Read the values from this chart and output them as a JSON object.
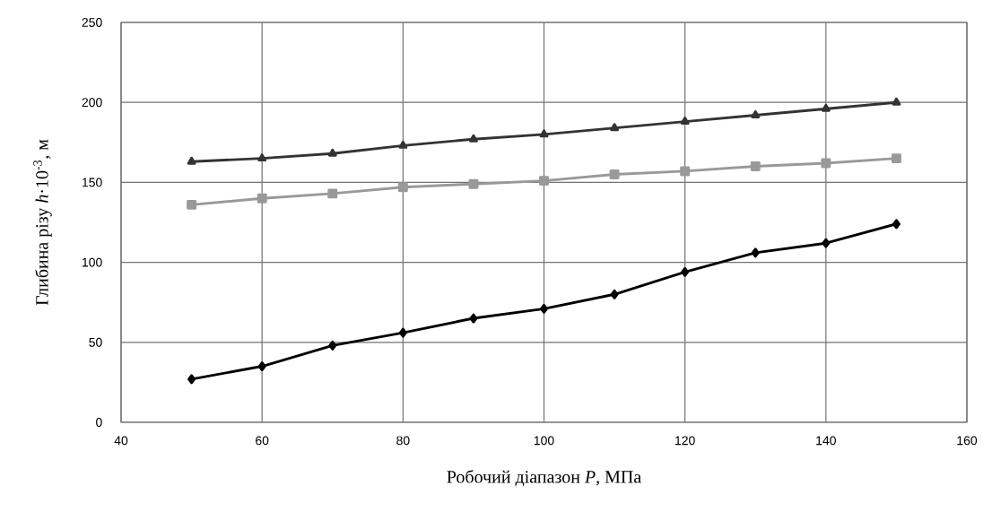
{
  "chart_data": {
    "type": "line",
    "xlabel": "Робочий діапазон *P*, МПа",
    "ylabel": "Глибина різу *h*·10$^{-3}$, м",
    "x": [
      50,
      60,
      70,
      80,
      90,
      100,
      110,
      120,
      130,
      140,
      150
    ],
    "series": [
      {
        "color": "#333333",
        "marker": "triangle",
        "values": [
          163,
          165,
          168,
          173,
          177,
          180,
          184,
          188,
          192,
          196,
          200
        ]
      },
      {
        "color": "#999999",
        "marker": "square",
        "values": [
          136,
          140,
          143,
          147,
          149,
          151,
          155,
          157,
          160,
          162,
          165
        ]
      },
      {
        "color": "#000000",
        "marker": "diamond",
        "values": [
          27,
          35,
          48,
          56,
          65,
          71,
          80,
          94,
          106,
          112,
          124
        ]
      }
    ],
    "xlim": [
      40,
      160
    ],
    "xticks": [
      40,
      60,
      80,
      100,
      120,
      140,
      160
    ],
    "ylim": [
      0,
      250
    ],
    "yticks": [
      0,
      50,
      100,
      150,
      200,
      250
    ],
    "grid": true,
    "line_style": "solid"
  }
}
